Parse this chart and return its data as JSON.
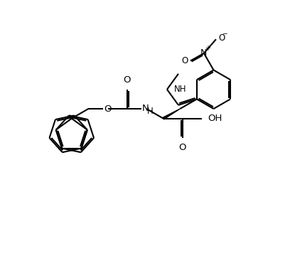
{
  "bg_color": "#ffffff",
  "line_color": "#000000",
  "line_width": 1.5,
  "font_size": 8.5,
  "figsize": [
    4.08,
    3.84
  ],
  "dpi": 100,
  "xlim": [
    0,
    10
  ],
  "ylim": [
    0,
    10
  ]
}
